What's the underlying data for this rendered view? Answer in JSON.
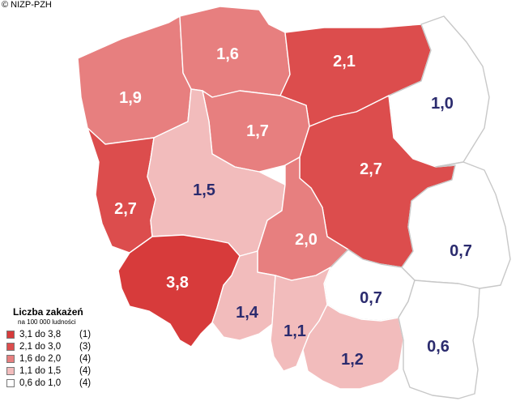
{
  "credit": "© NIZP-PZH",
  "legend": {
    "title": "Liczba zakażeń",
    "subtitle": "na 100 000 ludności",
    "classes": [
      {
        "range": "3,1 do 3,8",
        "count": "(1)",
        "color": "#d73b3b"
      },
      {
        "range": "2,1 do 3,0",
        "count": "(3)",
        "color": "#dc4d4d"
      },
      {
        "range": "1,6 do 2,0",
        "count": "(4)",
        "color": "#e77f7f"
      },
      {
        "range": "1,1 do 1,5",
        "count": "(4)",
        "color": "#f2bcbc"
      },
      {
        "range": "0,6 do 1,0",
        "count": "(4)",
        "color": "#ffffff"
      }
    ]
  },
  "regions": [
    {
      "name": "zachodniopomorskie",
      "value": "1,9",
      "class": 2
    },
    {
      "name": "pomorskie",
      "value": "1,6",
      "class": 2
    },
    {
      "name": "warmińsko-mazurskie",
      "value": "2,1",
      "class": 1
    },
    {
      "name": "podlaskie",
      "value": "1,0",
      "class": 4
    },
    {
      "name": "kujawsko-pomorskie",
      "value": "1,7",
      "class": 2
    },
    {
      "name": "lubuskie",
      "value": "2,7",
      "class": 1
    },
    {
      "name": "wielkopolskie",
      "value": "1,5",
      "class": 3
    },
    {
      "name": "mazowieckie",
      "value": "2,7",
      "class": 1
    },
    {
      "name": "łódzkie",
      "value": "2,0",
      "class": 2
    },
    {
      "name": "lubelskie",
      "value": "0,7",
      "class": 4
    },
    {
      "name": "dolnośląskie",
      "value": "3,8",
      "class": 0
    },
    {
      "name": "opolskie",
      "value": "1,4",
      "class": 3
    },
    {
      "name": "świętokrzyskie",
      "value": "0,7",
      "class": 4
    },
    {
      "name": "śląskie",
      "value": "1,1",
      "class": 3
    },
    {
      "name": "małopolskie",
      "value": "1,2",
      "class": 3
    },
    {
      "name": "podkarpackie",
      "value": "0,6",
      "class": 4
    }
  ]
}
